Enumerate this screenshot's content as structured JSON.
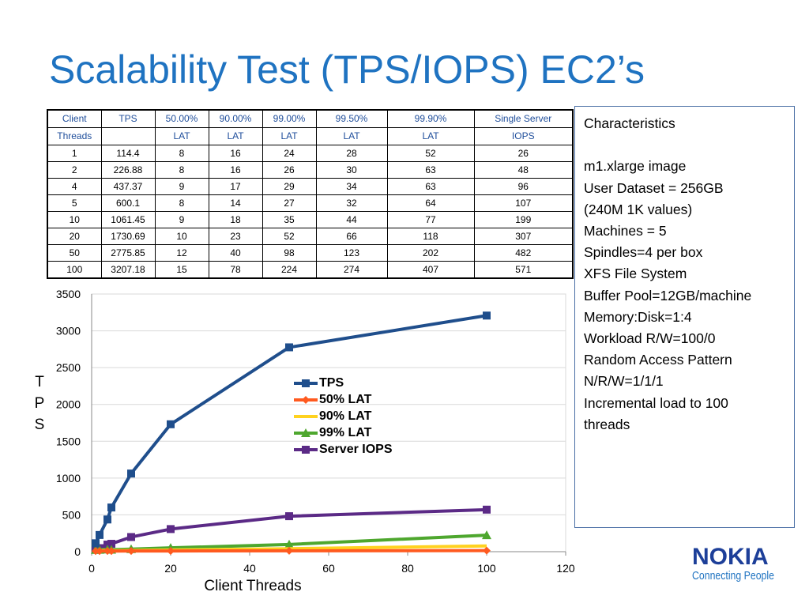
{
  "title": "Scalability Test (TPS/IOPS) EC2’s",
  "table": {
    "header_rows": [
      [
        "Client",
        "TPS",
        "50.00%",
        "90.00%",
        "99.00%",
        "99.50%",
        "99.90%",
        "Single Server"
      ],
      [
        "Threads",
        "",
        "LAT",
        "LAT",
        "LAT",
        "LAT",
        "LAT",
        "IOPS"
      ]
    ],
    "rows": [
      [
        "1",
        "114.4",
        "8",
        "16",
        "24",
        "28",
        "52",
        "26"
      ],
      [
        "2",
        "226.88",
        "8",
        "16",
        "26",
        "30",
        "63",
        "48"
      ],
      [
        "4",
        "437.37",
        "9",
        "17",
        "29",
        "34",
        "63",
        "96"
      ],
      [
        "5",
        "600.1",
        "8",
        "14",
        "27",
        "32",
        "64",
        "107"
      ],
      [
        "10",
        "1061.45",
        "9",
        "18",
        "35",
        "44",
        "77",
        "199"
      ],
      [
        "20",
        "1730.69",
        "10",
        "23",
        "52",
        "66",
        "118",
        "307"
      ],
      [
        "50",
        "2775.85",
        "12",
        "40",
        "98",
        "123",
        "202",
        "482"
      ],
      [
        "100",
        "3207.18",
        "15",
        "78",
        "224",
        "274",
        "407",
        "571"
      ]
    ]
  },
  "info_box": {
    "lines": [
      "Characteristics",
      "",
      "m1.xlarge image",
      "User Dataset = 256GB",
      "(240M 1K values)",
      "Machines = 5",
      "Spindles=4 per box",
      "XFS File System",
      "Buffer Pool=12GB/machine",
      "Memory:Disk=1:4",
      "Workload R/W=100/0",
      "Random Access Pattern",
      "N/R/W=1/1/1",
      "Incremental load to 100",
      "threads"
    ]
  },
  "logo": {
    "word": "NOKIA",
    "tagline": "Connecting People"
  },
  "chart_data": {
    "type": "line",
    "xlabel": "Client Threads",
    "ylabel": "TPS",
    "xlim": [
      0,
      120
    ],
    "ylim": [
      0,
      3500
    ],
    "x_ticks": [
      0,
      20,
      40,
      60,
      80,
      100,
      120
    ],
    "y_ticks": [
      0,
      500,
      1000,
      1500,
      2000,
      2500,
      3000,
      3500
    ],
    "grid": "horizontal",
    "legend_position": "center",
    "x": [
      1,
      2,
      4,
      5,
      10,
      20,
      50,
      100
    ],
    "series": [
      {
        "name": "TPS",
        "color": "#1f4e8c",
        "marker": "square",
        "values": [
          114.4,
          226.88,
          437.37,
          600.1,
          1061.45,
          1730.69,
          2775.85,
          3207.18
        ]
      },
      {
        "name": "50% LAT",
        "color": "#ff5a1f",
        "marker": "diamond",
        "values": [
          8,
          8,
          9,
          8,
          9,
          10,
          12,
          15
        ]
      },
      {
        "name": "90% LAT",
        "color": "#ffd21f",
        "marker": "none",
        "values": [
          16,
          16,
          17,
          14,
          18,
          23,
          40,
          78
        ]
      },
      {
        "name": "99% LAT",
        "color": "#4ea72e",
        "marker": "triangle",
        "values": [
          24,
          26,
          29,
          27,
          35,
          52,
          98,
          224
        ]
      },
      {
        "name": "Server IOPS",
        "color": "#5b2a86",
        "marker": "square",
        "values": [
          26,
          48,
          96,
          107,
          199,
          307,
          482,
          571
        ]
      }
    ]
  }
}
